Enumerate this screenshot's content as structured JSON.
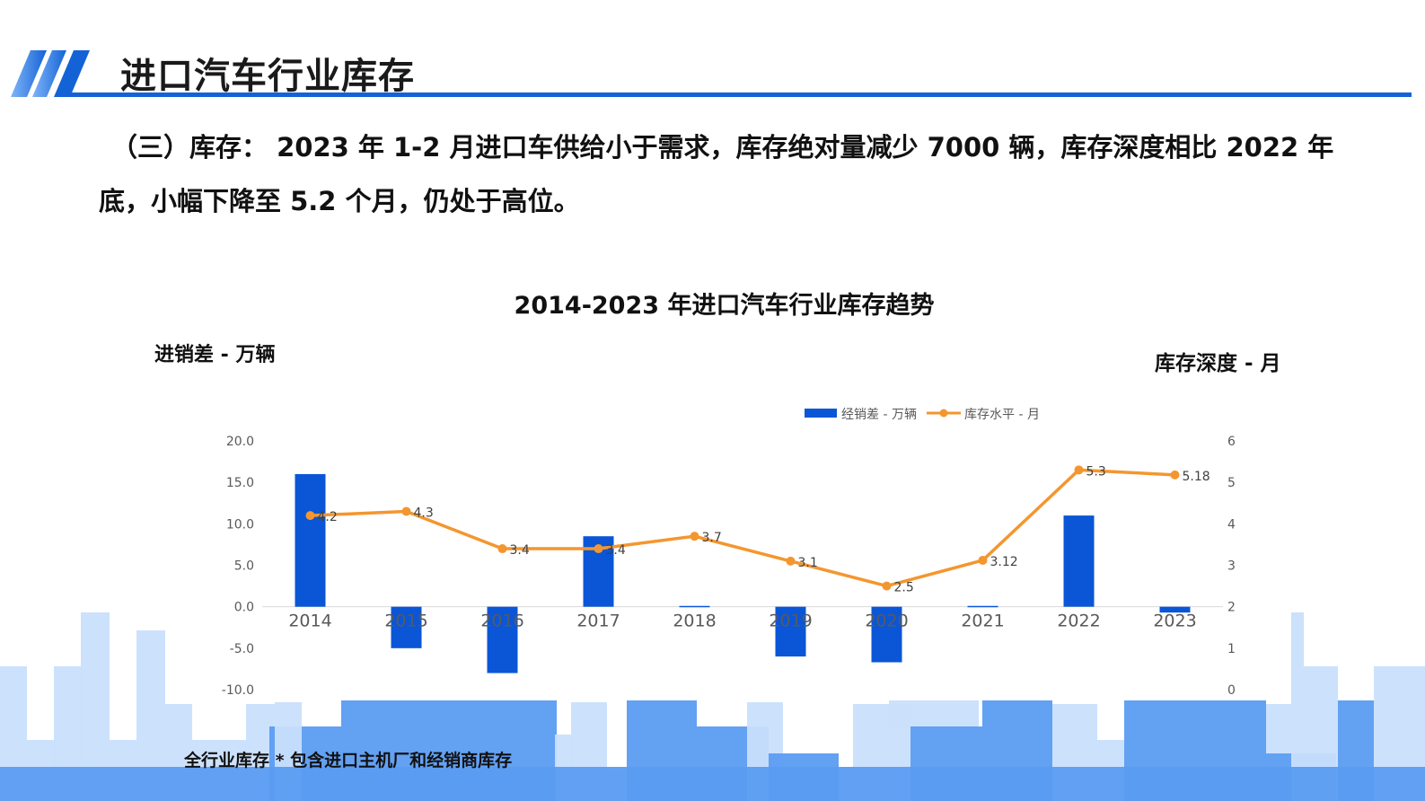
{
  "header": {
    "title": "进口汽车行业库存"
  },
  "intro": {
    "text": "（三）库存： 2023 年 1-2 月进口车供给小于需求，库存绝对量减少 7000 辆，库存深度相比 2022 年底，小幅下降至 5.2 个月，仍处于高位。"
  },
  "colors": {
    "accent": "#1463d6",
    "bar": "#0a56d6",
    "line": "#f4962f",
    "skyline_light": "#c9dffb",
    "skyline_mid": "#5b9cf2"
  },
  "chart_data": {
    "type": "bar+line",
    "title": "2014-2023 年进口汽车行业库存趋势",
    "ylabel_left": "进销差 - 万辆",
    "ylabel_right": "库存深度 - 月",
    "categories": [
      "2014",
      "2015",
      "2016",
      "2017",
      "2018",
      "2019",
      "2020",
      "2021",
      "2022",
      "2023"
    ],
    "series": [
      {
        "name": "经销差 - 万辆",
        "type": "bar",
        "axis": "left",
        "values": [
          16.0,
          -5.0,
          -8.0,
          8.5,
          0.1,
          -6.0,
          -6.7,
          0.1,
          11.0,
          -0.7
        ]
      },
      {
        "name": "库存水平 - 月",
        "type": "line",
        "axis": "right",
        "values": [
          4.2,
          4.3,
          3.4,
          3.4,
          3.7,
          3.1,
          2.5,
          3.12,
          5.3,
          5.18
        ],
        "labels": [
          "4.2",
          "4.3",
          "3.4",
          "3.4",
          "3.7",
          "3.1",
          "2.5",
          "3.12",
          "5.3",
          "5.18"
        ]
      }
    ],
    "ylim_left": [
      -10,
      20
    ],
    "yticks_left": [
      "20.0",
      "15.0",
      "10.0",
      "5.0",
      "0.0",
      "-5.0",
      "-10.0"
    ],
    "ylim_right": [
      0,
      6
    ],
    "yticks_right": [
      "6",
      "5",
      "4",
      "3",
      "2",
      "1",
      "0"
    ],
    "legend": "top-right",
    "grid": false
  },
  "footnote": "全行业库存 * 包含进口主机厂和经销商库存"
}
